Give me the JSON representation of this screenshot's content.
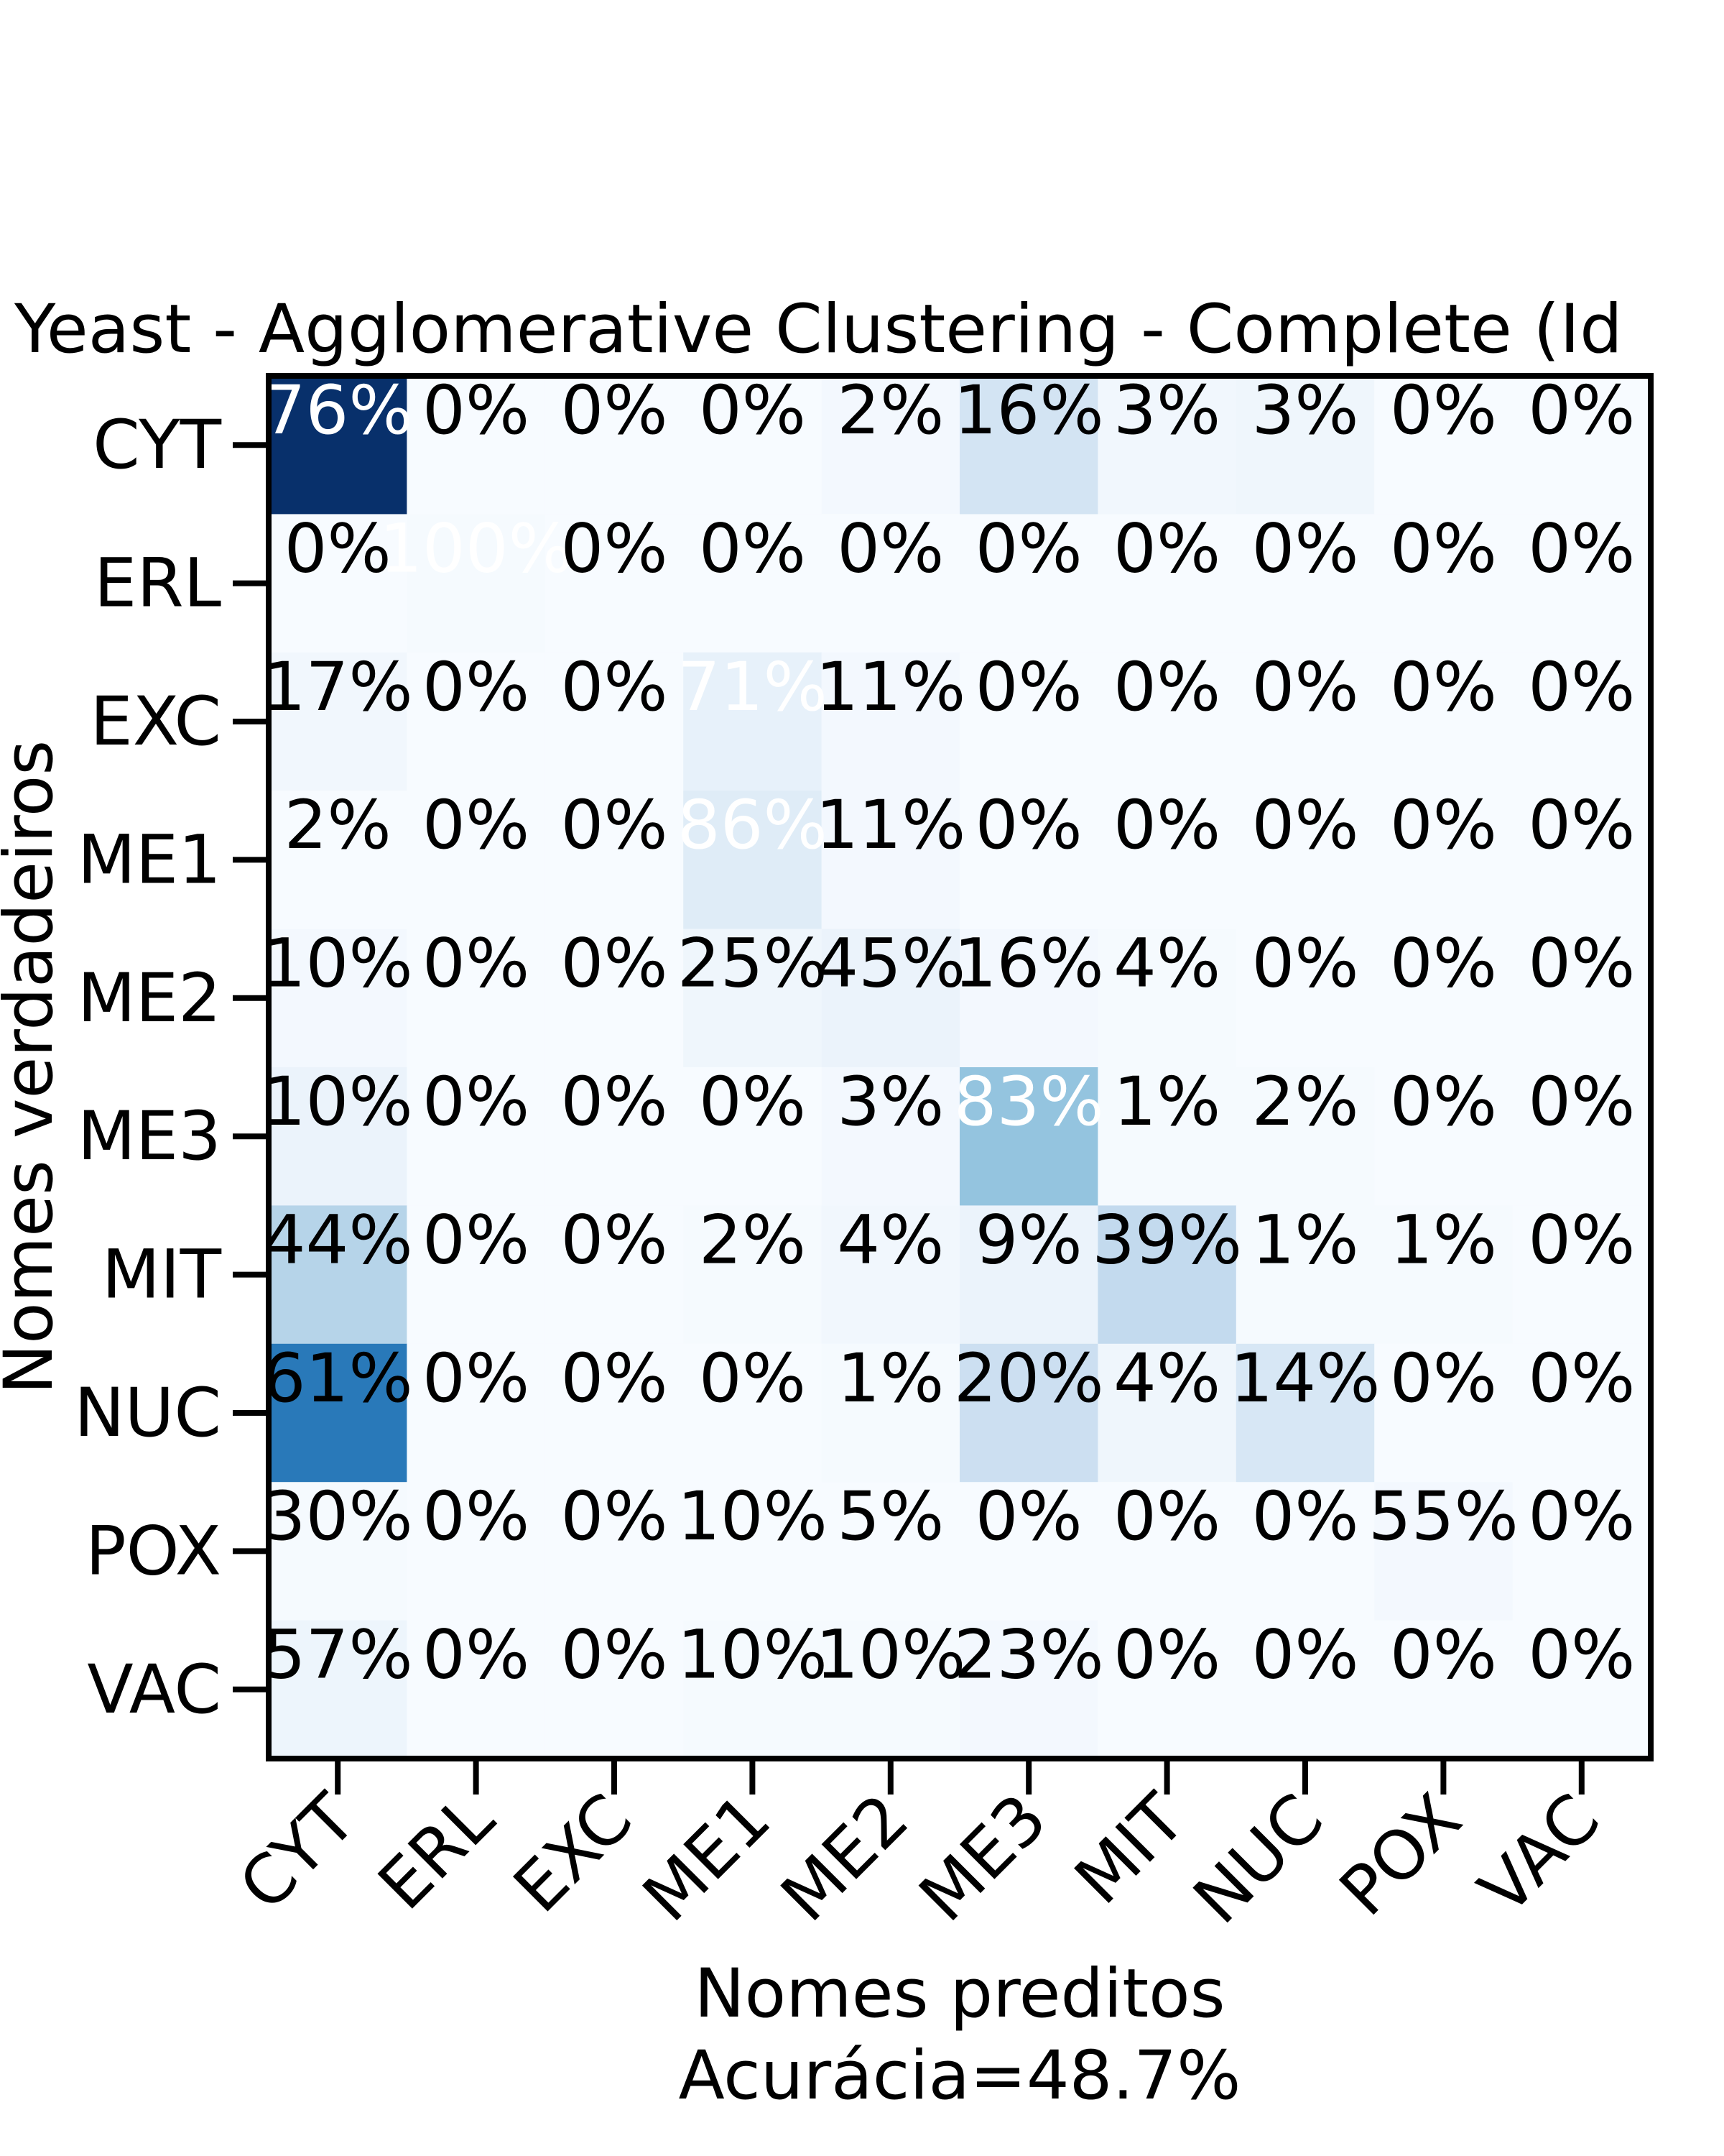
{
  "chart_data": {
    "type": "heatmap",
    "title": "Yeast - Agglomerative Clustering - Complete (Id",
    "xlabel": "Nomes preditos",
    "ylabel": "Nomes verdadeiros",
    "accuracy_label": "Acurácia=48.7%",
    "x_categories": [
      "CYT",
      "ERL",
      "EXC",
      "ME1",
      "ME2",
      "ME3",
      "MIT",
      "NUC",
      "POX",
      "VAC"
    ],
    "y_categories": [
      "CYT",
      "ERL",
      "EXC",
      "ME1",
      "ME2",
      "ME3",
      "MIT",
      "NUC",
      "POX",
      "VAC"
    ],
    "cell_labels": [
      [
        "76%",
        "0%",
        "0%",
        "0%",
        "2%",
        "16%",
        "3%",
        "3%",
        "0%",
        "0%"
      ],
      [
        "0%",
        "100%",
        "0%",
        "0%",
        "0%",
        "0%",
        "0%",
        "0%",
        "0%",
        "0%"
      ],
      [
        "17%",
        "0%",
        "0%",
        "71%",
        "11%",
        "0%",
        "0%",
        "0%",
        "0%",
        "0%"
      ],
      [
        "2%",
        "0%",
        "0%",
        "86%",
        "11%",
        "0%",
        "0%",
        "0%",
        "0%",
        "0%"
      ],
      [
        "10%",
        "0%",
        "0%",
        "25%",
        "45%",
        "16%",
        "4%",
        "0%",
        "0%",
        "0%"
      ],
      [
        "10%",
        "0%",
        "0%",
        "0%",
        "3%",
        "83%",
        "1%",
        "2%",
        "0%",
        "0%"
      ],
      [
        "44%",
        "0%",
        "0%",
        "2%",
        "4%",
        "9%",
        "39%",
        "1%",
        "1%",
        "0%"
      ],
      [
        "61%",
        "0%",
        "0%",
        "0%",
        "1%",
        "20%",
        "4%",
        "14%",
        "0%",
        "0%"
      ],
      [
        "30%",
        "0%",
        "0%",
        "10%",
        "5%",
        "0%",
        "0%",
        "0%",
        "55%",
        "0%"
      ],
      [
        "57%",
        "0%",
        "0%",
        "10%",
        "10%",
        "23%",
        "0%",
        "0%",
        "0%",
        "0%"
      ]
    ],
    "color_intensity": [
      [
        1.0,
        0.0,
        0.0,
        0.0,
        0.02,
        0.18,
        0.03,
        0.04,
        0.0,
        0.0
      ],
      [
        0.0,
        0.01,
        0.0,
        0.0,
        0.0,
        0.0,
        0.0,
        0.0,
        0.0,
        0.0
      ],
      [
        0.03,
        0.0,
        0.0,
        0.08,
        0.02,
        0.0,
        0.0,
        0.0,
        0.0,
        0.0
      ],
      [
        0.0,
        0.0,
        0.0,
        0.12,
        0.02,
        0.0,
        0.0,
        0.0,
        0.0,
        0.0
      ],
      [
        0.02,
        0.0,
        0.0,
        0.04,
        0.06,
        0.02,
        0.01,
        0.0,
        0.0,
        0.0
      ],
      [
        0.06,
        0.0,
        0.0,
        0.0,
        0.02,
        0.4,
        0.01,
        0.01,
        0.0,
        0.0
      ],
      [
        0.3,
        0.0,
        0.0,
        0.01,
        0.03,
        0.06,
        0.26,
        0.01,
        0.01,
        0.0
      ],
      [
        0.72,
        0.0,
        0.0,
        0.0,
        0.01,
        0.22,
        0.04,
        0.16,
        0.0,
        0.0
      ],
      [
        0.01,
        0.0,
        0.0,
        0.0,
        0.0,
        0.0,
        0.0,
        0.0,
        0.02,
        0.0
      ],
      [
        0.05,
        0.0,
        0.0,
        0.01,
        0.01,
        0.02,
        0.0,
        0.0,
        0.0,
        0.0
      ]
    ],
    "white_text_cells": [
      [
        0,
        0
      ],
      [
        1,
        1
      ],
      [
        2,
        3
      ],
      [
        3,
        3
      ],
      [
        5,
        5
      ]
    ],
    "colormap": "Blues",
    "grid": false,
    "legend": "none"
  }
}
